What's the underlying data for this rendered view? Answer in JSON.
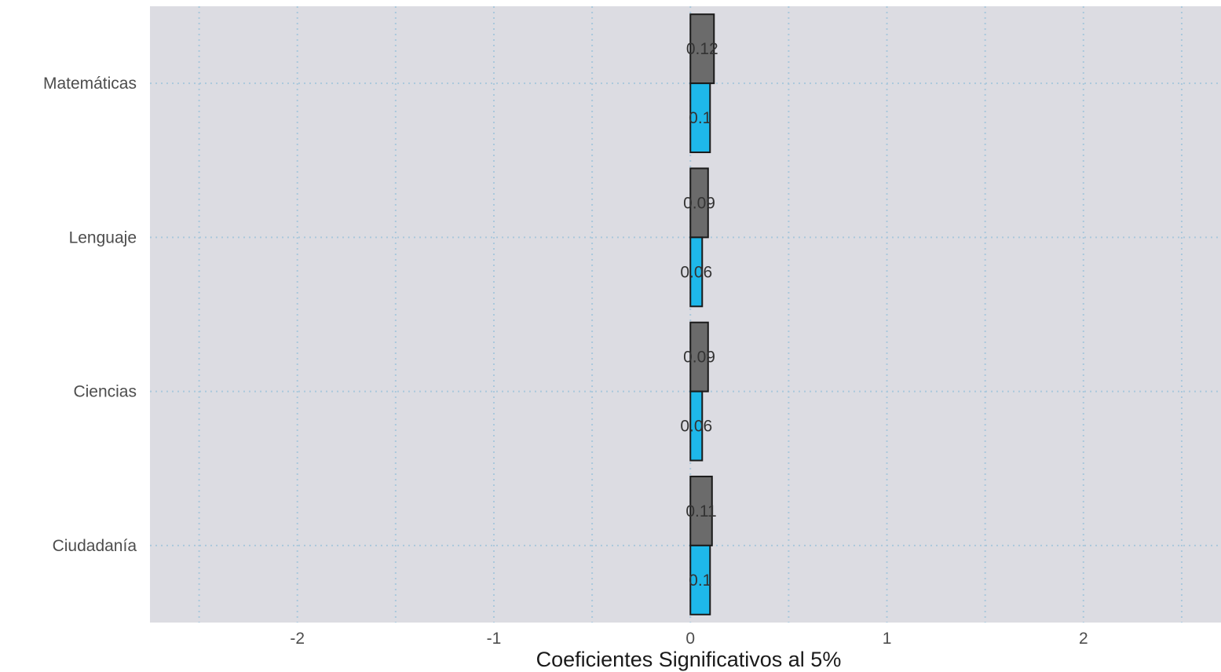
{
  "chart_data": {
    "type": "bar",
    "orientation": "horizontal",
    "title": "",
    "xlabel": "Coeficientes Significativos al 5%",
    "ylabel": "",
    "xlim": [
      -2.75,
      2.7
    ],
    "x_ticks": [
      -2,
      -1,
      0,
      1,
      2
    ],
    "x_tick_labels": [
      "-2",
      "-1",
      "0",
      "1",
      "2"
    ],
    "categories": [
      "Matemáticas",
      "Lenguaje",
      "Ciencias",
      "Ciudadanía"
    ],
    "series": [
      {
        "color": "#6b6b6b",
        "values": [
          0.12,
          0.09,
          0.09,
          0.11
        ],
        "labels": [
          "0.12",
          "0.09",
          "0.09",
          "0.11"
        ]
      },
      {
        "color": "#1eb8ea",
        "values": [
          0.1,
          0.06,
          0.06,
          0.1
        ],
        "labels": [
          "0.1",
          "0.06",
          "0.06",
          "0.1"
        ]
      }
    ],
    "panel_background": "#dcdce2",
    "grid": true,
    "legend": "none"
  }
}
